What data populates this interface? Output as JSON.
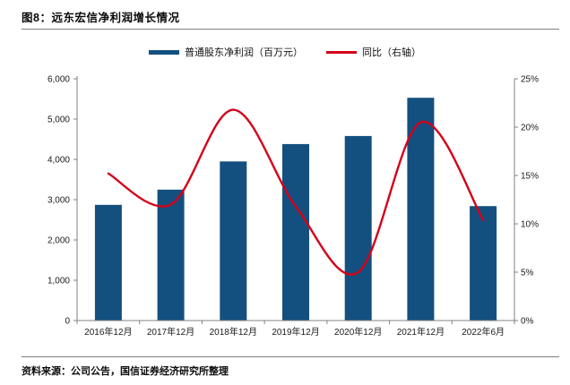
{
  "figure": {
    "title": "图8：远东宏信净利润增长情况",
    "source": "资料来源：公司公告，国信证券经济研究所整理"
  },
  "legend": [
    {
      "label": "普通股东净利润（百万元）",
      "type": "bar"
    },
    {
      "label": "同比（右轴）",
      "type": "line"
    }
  ],
  "colors": {
    "bar": "#14507f",
    "line": "#d40019",
    "axis": "#808080",
    "tick_text": "#1a1a1a"
  },
  "chart_data": {
    "type": "bar+line combo",
    "title": "远东宏信净利润增长情况",
    "categories": [
      "2016年12月",
      "2017年12月",
      "2018年12月",
      "2019年12月",
      "2020年12月",
      "2021年12月",
      "2022年6月"
    ],
    "series": [
      {
        "name": "普通股东净利润（百万元）",
        "type": "bar",
        "axis": "left",
        "values": [
          2870,
          3250,
          3950,
          4380,
          4580,
          5530,
          2840
        ]
      },
      {
        "name": "同比（右轴）",
        "type": "line",
        "axis": "right",
        "values": [
          15.2,
          12.0,
          21.8,
          11.8,
          5.0,
          20.5,
          10.4
        ]
      }
    ],
    "left_axis": {
      "min": 0,
      "max": 6000,
      "ticks": [
        "0",
        "1,000",
        "2,000",
        "3,000",
        "4,000",
        "5,000",
        "6,000"
      ]
    },
    "right_axis": {
      "min": 0,
      "max": 25,
      "ticks": [
        "0%",
        "5%",
        "10%",
        "15%",
        "20%",
        "25%"
      ]
    },
    "grid": false,
    "legend_position": "top-center",
    "line_style": "smoothed"
  }
}
